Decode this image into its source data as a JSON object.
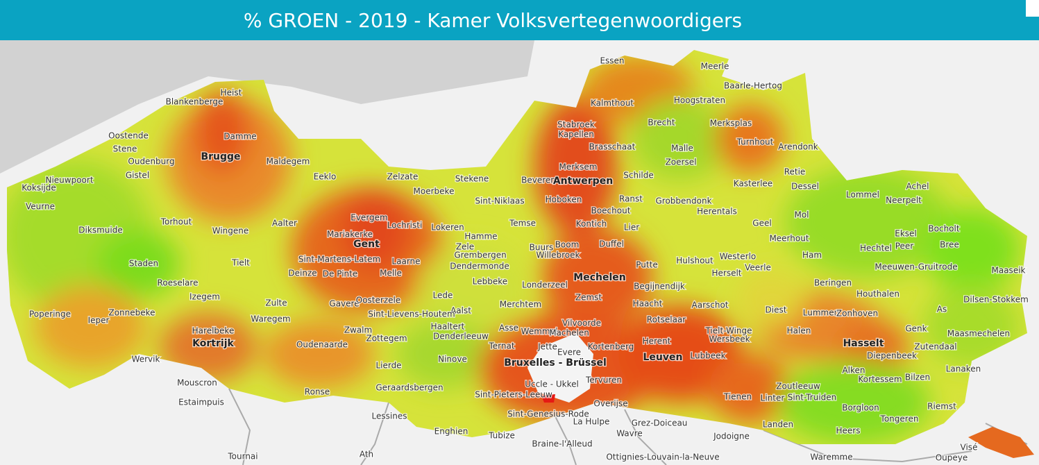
{
  "title": "% GROEN - 2019 - Kamer Volksvertegenwoordigers",
  "places": [
    "Essen",
    "Meerle",
    "Baarle-Hertog",
    "Heist",
    "Blankenberge",
    "Kalmthout",
    "Hoogstraten",
    "Brecht",
    "Stabroek",
    "Kapellen",
    "Merksplas",
    "Damme",
    "Oostende",
    "Brasschaat",
    "Turnhout",
    "Arendonk",
    "Stene",
    "Oudenburg",
    "Maldegem",
    "Malle",
    "Zoersel",
    "Merksem",
    "Retie",
    "Gistel",
    "Nieuwpoort",
    "Eeklo",
    "Zelzate",
    "Stekene",
    "Beveren",
    "Antwerpen",
    "Schilde",
    "Kasterlee",
    "Dessel",
    "Lommel",
    "Achel",
    "Koksijde",
    "Moerbeke",
    "Sint-Niklaas",
    "Hoboken",
    "Ranst",
    "Grobbendonk",
    "Herentals",
    "Neerpelt",
    "Veurne",
    "Boechout",
    "Evergem",
    "Torhout",
    "Aalter",
    "Lochristi",
    "Lokeren",
    "Temse",
    "Kontich",
    "Lier",
    "Geel",
    "Mol",
    "Eksel",
    "Bocholt",
    "Diksmuide",
    "Wingene",
    "Mariakerke",
    "Hamme",
    "Gent",
    "Meerhout",
    "Hechtel",
    "Peer",
    "Bree",
    "Zele",
    "Buurs",
    "Boom",
    "Duffel",
    "Tielt",
    "Sint-Martens-Latem",
    "Laarne",
    "Grembergen",
    "Willebroek",
    "Hulshout",
    "Westerlo",
    "Ham",
    "Staden",
    "Dendermonde",
    "Putte",
    "Veerle",
    "Meeuwen-Gruitrode",
    "Maaseik",
    "Roeselare",
    "Deinze",
    "De Pinte",
    "Melle",
    "Herselt",
    "Lebbeke",
    "Londerzeel",
    "Mechelen",
    "Begijnendijk",
    "Beringen",
    "Izegem",
    "Lede",
    "Zemst",
    "Aarschot",
    "Houthalen",
    "Dilsen-Stokkem",
    "Poperinge",
    "Zonnebeke",
    "Ieper",
    "Zulte",
    "Gavere",
    "Oosterzele",
    "Aalst",
    "Merchtem",
    "Haacht",
    "Diest",
    "Lummen",
    "Zonhoven",
    "As",
    "Sint-Lievens-Houtem",
    "Harelbeke",
    "Waregem",
    "Haaltert",
    "Asse",
    "Wemmel",
    "Vilvoorde",
    "Rotselaar",
    "Tielt-Winge",
    "Halen",
    "Genk",
    "Machelen",
    "Zwalm",
    "Denderleeuw",
    "Herent",
    "Wersbeek",
    "Maasmechelen",
    "Kortrijk",
    "Zottegem",
    "Oudenaarde",
    "Jette",
    "Kortenberg",
    "Hasselt",
    "Zutendaal",
    "Wervik",
    "Ternat",
    "Evere",
    "Leuven",
    "Lubbeek",
    "Diepenbeek",
    "Bruxelles - Brüssel",
    "Ninove",
    "Lierde",
    "Alken",
    "Kortessem",
    "Bilzen",
    "Lanaken",
    "Mouscron",
    "Geraardsbergen",
    "Uccle - Ukkel",
    "Tervuren",
    "Zoutleeuw",
    "Linter",
    "Sint-Truiden",
    "Riemst",
    "Estaimpuis",
    "Ronse",
    "Sint-Pieters-Leeuw",
    "Overijse",
    "Tienen",
    "Borgloon",
    "Lessines",
    "Sint-Genesius-Rode",
    "La Hulpe",
    "Grez-Doiceau",
    "Landen",
    "Tongeren",
    "Enghien",
    "Tubize",
    "Wavre",
    "Jodoigne",
    "Heers",
    "Visé",
    "Braine-l'Alleud",
    "Tournai",
    "Ath",
    "Ottignies-Louvain-la-Neuve",
    "Waremme",
    "Oupeye",
    "Brugge"
  ]
}
